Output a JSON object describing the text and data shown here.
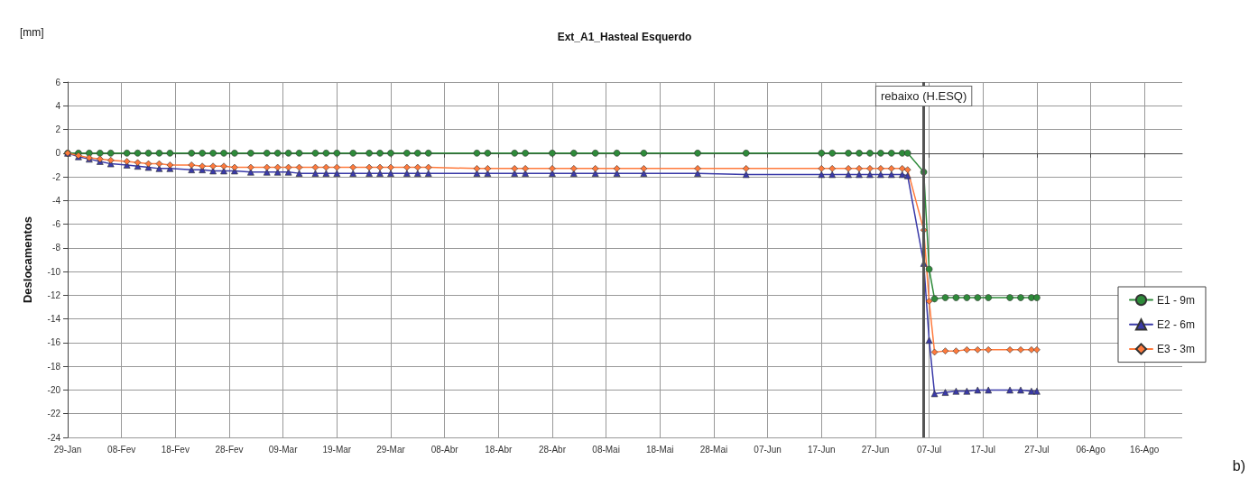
{
  "chart_data": {
    "type": "line",
    "title": "Ext_A1_Hasteal Esquerdo",
    "ylabel": "Deslocamentos",
    "annotations": [
      "[mm]",
      "b)"
    ],
    "x": [
      "--01-29",
      "--01-31",
      "--02-02",
      "--02-04",
      "--02-06",
      "--02-09",
      "--02-11",
      "--02-13",
      "--02-15",
      "--02-17",
      "--02-21",
      "--02-23",
      "--02-25",
      "--02-27",
      "--02-29",
      "--03-03",
      "--03-06",
      "--03-08",
      "--03-10",
      "--03-12",
      "--03-15",
      "--03-17",
      "--03-19",
      "--03-22",
      "--03-25",
      "--03-27",
      "--03-29",
      "--04-01",
      "--04-03",
      "--04-05",
      "--04-14",
      "--04-16",
      "--04-21",
      "--04-23",
      "--04-28",
      "--05-02",
      "--05-06",
      "--05-10",
      "--05-15",
      "--05-25",
      "--06-03",
      "--06-17",
      "--06-19",
      "--06-22",
      "--06-24",
      "--06-26",
      "--06-28",
      "--06-30",
      "--07-02",
      "--07-03",
      "--07-06",
      "--07-07",
      "--07-08",
      "--07-10",
      "--07-12",
      "--07-14",
      "--07-16",
      "--07-18",
      "--07-22",
      "--07-24",
      "--07-26",
      "--07-27"
    ],
    "series": [
      {
        "name": "E1 - 9m",
        "color": "#2e8b3a",
        "marker": "circle",
        "values": [
          0,
          0,
          0,
          0,
          0,
          0,
          0,
          0,
          0,
          0,
          0,
          0,
          0,
          0,
          0,
          0,
          0,
          0,
          0,
          0,
          0,
          0,
          0,
          0,
          0,
          0,
          0,
          0,
          0,
          0,
          0,
          0,
          0,
          0,
          0,
          0,
          0,
          0,
          0,
          0,
          0,
          0,
          0,
          0,
          0,
          0,
          0,
          0,
          0,
          0,
          -1.6,
          -9.8,
          -12.3,
          -12.2,
          -12.2,
          -12.2,
          -12.2,
          -12.2,
          -12.2,
          -12.2,
          -12.2,
          -12.2
        ]
      },
      {
        "name": "E2 - 6m",
        "color": "#3a3aa8",
        "marker": "triangle",
        "values": [
          0,
          -0.3,
          -0.5,
          -0.7,
          -0.9,
          -1.0,
          -1.1,
          -1.2,
          -1.3,
          -1.3,
          -1.4,
          -1.4,
          -1.5,
          -1.5,
          -1.5,
          -1.6,
          -1.6,
          -1.6,
          -1.6,
          -1.7,
          -1.7,
          -1.7,
          -1.7,
          -1.7,
          -1.7,
          -1.7,
          -1.7,
          -1.7,
          -1.7,
          -1.7,
          -1.7,
          -1.7,
          -1.7,
          -1.7,
          -1.7,
          -1.7,
          -1.7,
          -1.7,
          -1.7,
          -1.7,
          -1.8,
          -1.8,
          -1.8,
          -1.8,
          -1.8,
          -1.8,
          -1.8,
          -1.8,
          -1.8,
          -1.9,
          -9.3,
          -15.8,
          -20.3,
          -20.2,
          -20.1,
          -20.1,
          -20.0,
          -20.0,
          -20.0,
          -20.0,
          -20.1,
          -20.1
        ]
      },
      {
        "name": "E3 - 3m",
        "color": "#ff7a3c",
        "marker": "diamond",
        "values": [
          0,
          -0.2,
          -0.4,
          -0.5,
          -0.6,
          -0.7,
          -0.8,
          -0.9,
          -0.9,
          -1.0,
          -1.0,
          -1.1,
          -1.1,
          -1.1,
          -1.2,
          -1.2,
          -1.2,
          -1.2,
          -1.2,
          -1.2,
          -1.2,
          -1.2,
          -1.2,
          -1.2,
          -1.2,
          -1.2,
          -1.2,
          -1.2,
          -1.2,
          -1.2,
          -1.3,
          -1.3,
          -1.3,
          -1.3,
          -1.3,
          -1.3,
          -1.3,
          -1.3,
          -1.3,
          -1.3,
          -1.3,
          -1.3,
          -1.3,
          -1.3,
          -1.3,
          -1.3,
          -1.3,
          -1.3,
          -1.3,
          -1.4,
          -6.5,
          -12.5,
          -16.8,
          -16.7,
          -16.7,
          -16.6,
          -16.6,
          -16.6,
          -16.6,
          -16.6,
          -16.6,
          -16.6
        ]
      }
    ],
    "xlim": [
      "--01-29",
      "--08-23"
    ],
    "xticks": [
      {
        "value": "--01-29",
        "label": "29-Jan"
      },
      {
        "value": "--02-08",
        "label": "08-Fev"
      },
      {
        "value": "--02-18",
        "label": "18-Fev"
      },
      {
        "value": "--02-28",
        "label": "28-Fev"
      },
      {
        "value": "--03-09",
        "label": "09-Mar"
      },
      {
        "value": "--03-19",
        "label": "19-Mar"
      },
      {
        "value": "--03-29",
        "label": "29-Mar"
      },
      {
        "value": "--04-08",
        "label": "08-Abr"
      },
      {
        "value": "--04-18",
        "label": "18-Abr"
      },
      {
        "value": "--04-28",
        "label": "28-Abr"
      },
      {
        "value": "--05-08",
        "label": "08-Mai"
      },
      {
        "value": "--05-18",
        "label": "18-Mai"
      },
      {
        "value": "--05-28",
        "label": "28-Mai"
      },
      {
        "value": "--06-07",
        "label": "07-Jun"
      },
      {
        "value": "--06-17",
        "label": "17-Jun"
      },
      {
        "value": "--06-27",
        "label": "27-Jun"
      },
      {
        "value": "--07-07",
        "label": "07-Jul"
      },
      {
        "value": "--07-17",
        "label": "17-Jul"
      },
      {
        "value": "--07-27",
        "label": "27-Jul"
      },
      {
        "value": "--08-06",
        "label": "06-Ago"
      },
      {
        "value": "--08-16",
        "label": "16-Ago"
      }
    ],
    "ylim": [
      -24,
      6
    ],
    "yticks": [
      -24,
      -22,
      -20,
      -18,
      -16,
      -14,
      -12,
      -10,
      -8,
      -6,
      -4,
      -2,
      0,
      2,
      4,
      6
    ],
    "ref_lines": [
      {
        "axis": "x",
        "value": "--07-06",
        "label": "rebaixo (H.ESQ)",
        "color": "#555555"
      }
    ],
    "grid": true,
    "legend": "right",
    "line_style": "solid"
  }
}
